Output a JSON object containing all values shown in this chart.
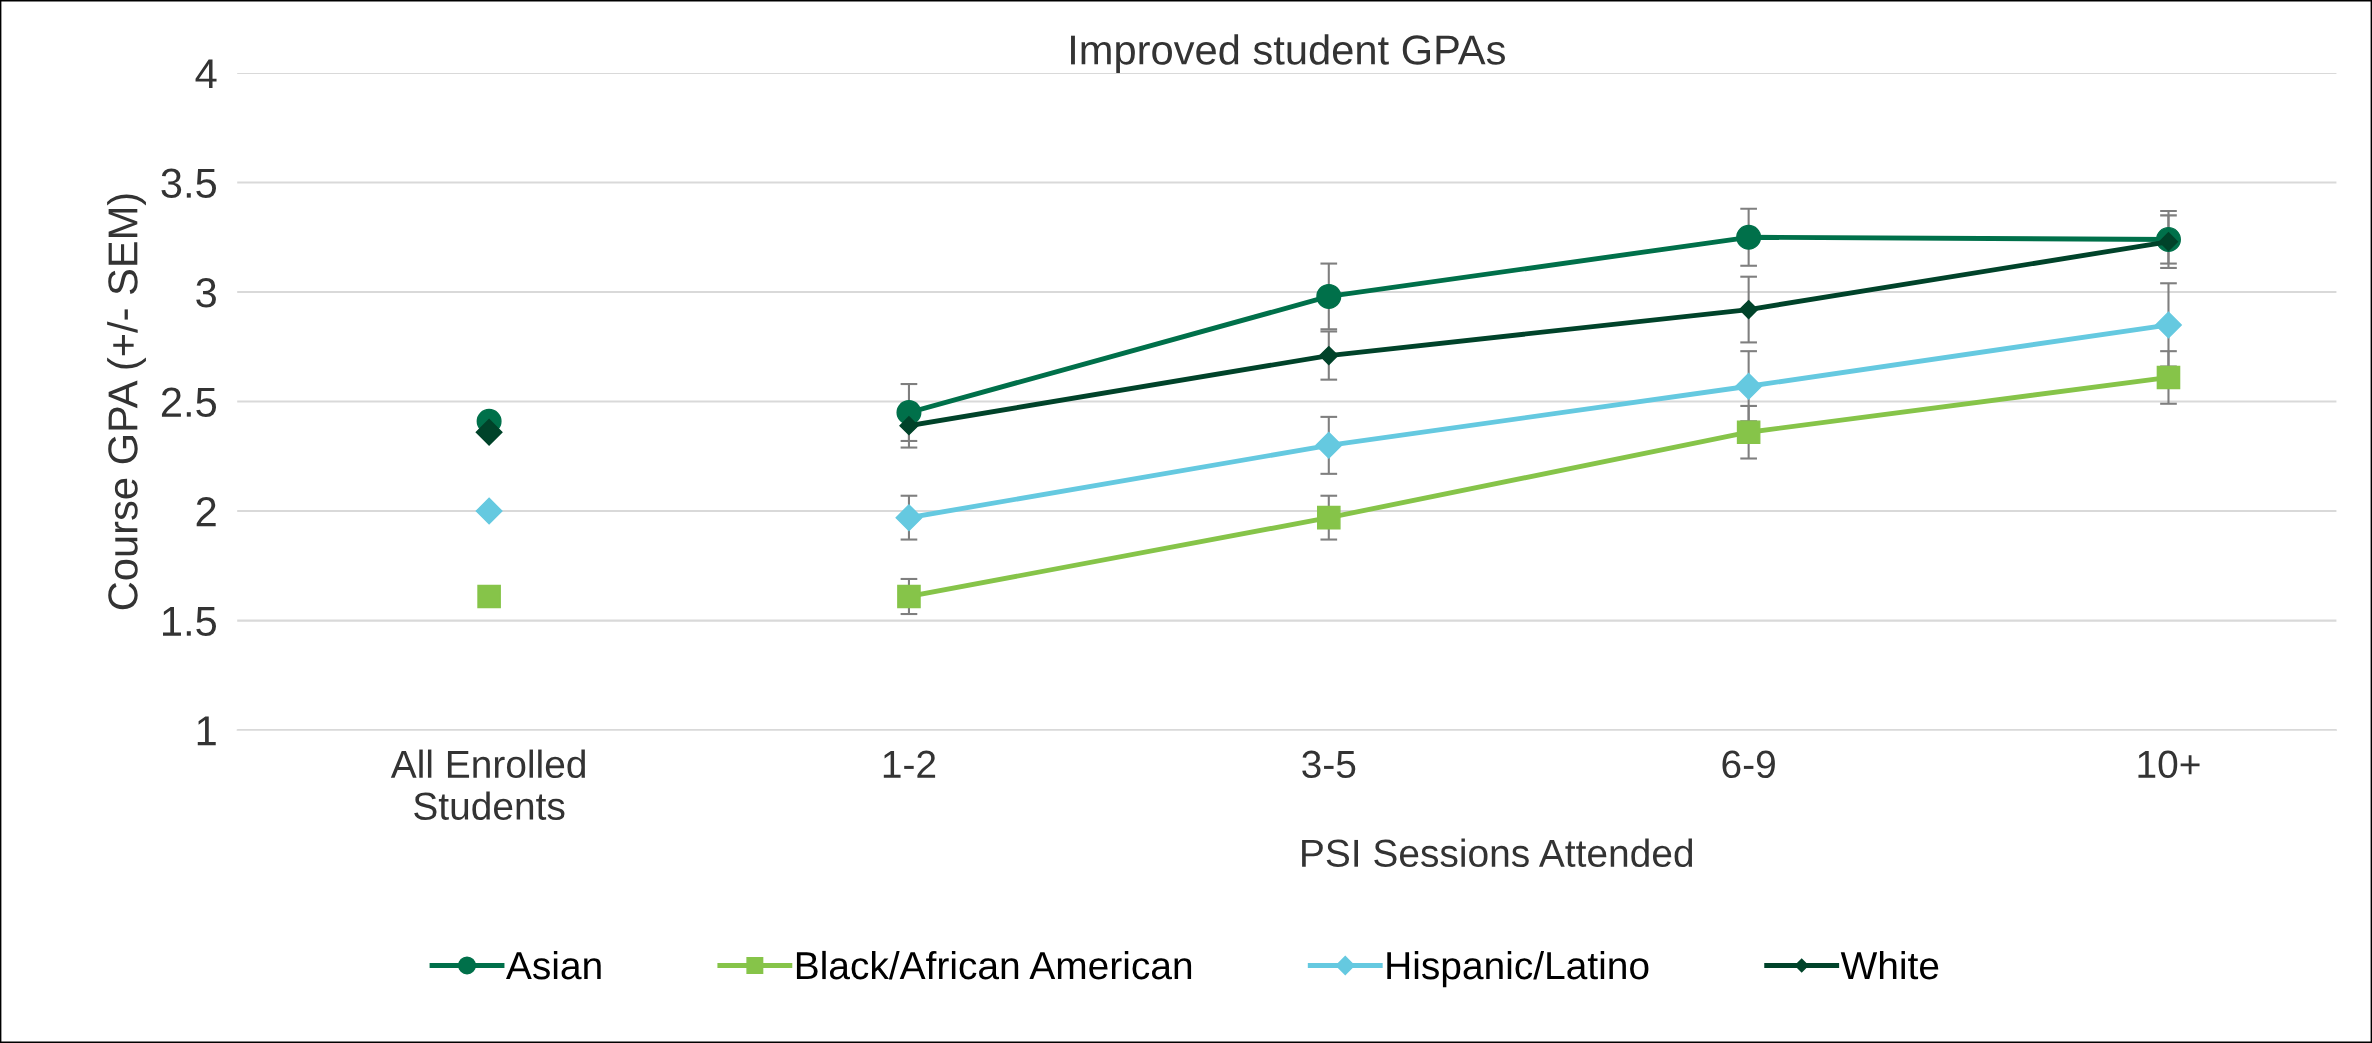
{
  "chart_data": {
    "type": "line",
    "title": "Improved student GPAs",
    "xlabel": "PSI Sessions Attended",
    "ylabel": "Course GPA (+/- SEM)",
    "categories": [
      "All Enrolled\nStudents",
      "1-2",
      "3-5",
      "6-9",
      "10+"
    ],
    "series": [
      {
        "name": "Asian",
        "color": "#00704a",
        "marker": "circle",
        "values": [
          null,
          2.45,
          2.98,
          3.25,
          3.24
        ],
        "errors": [
          null,
          0.13,
          0.15,
          0.13,
          [
            3.13,
            3.37
          ]
        ]
      },
      {
        "name": "Black/African American",
        "color": "#86c449",
        "marker": "square",
        "values": [
          null,
          1.61,
          1.97,
          2.36,
          2.61
        ],
        "errors": [
          null,
          0.08,
          0.1,
          0.12,
          0.12
        ]
      },
      {
        "name": "Hispanic/Latino",
        "color": "#65c9e0",
        "marker": "diamond",
        "values": [
          null,
          1.97,
          2.3,
          2.57,
          2.85
        ],
        "errors": [
          null,
          0.1,
          0.13,
          0.16,
          0.19
        ]
      },
      {
        "name": "White",
        "color": "#00432a",
        "marker": "diamond",
        "values": [
          null,
          2.39,
          2.71,
          2.92,
          3.23
        ],
        "errors": [
          null,
          0.1,
          0.11,
          0.15,
          [
            3.11,
            3.35
          ]
        ]
      },
      {
        "type": "scatter",
        "color": "#00704a",
        "marker": "circle",
        "x": [
          "All Enrolled\nStudents"
        ],
        "values": [
          2.41
        ]
      },
      {
        "type": "scatter",
        "color": "#86c449",
        "marker": "square",
        "x": [
          "All Enrolled\nStudents"
        ],
        "values": [
          1.61
        ]
      },
      {
        "type": "scatter",
        "color": "#65c9e0",
        "marker": "diamond",
        "x": [
          "All Enrolled\nStudents"
        ],
        "values": [
          2.0
        ]
      },
      {
        "type": "scatter",
        "color": "#00432a",
        "marker": "diamond",
        "x": [
          "All Enrolled\nStudents"
        ],
        "values": [
          2.36
        ]
      }
    ],
    "ylim": [
      1,
      4
    ],
    "yticks": [
      1,
      1.5,
      2,
      2.5,
      3,
      3.5,
      4
    ],
    "grid": "y",
    "legend": "bottom"
  }
}
